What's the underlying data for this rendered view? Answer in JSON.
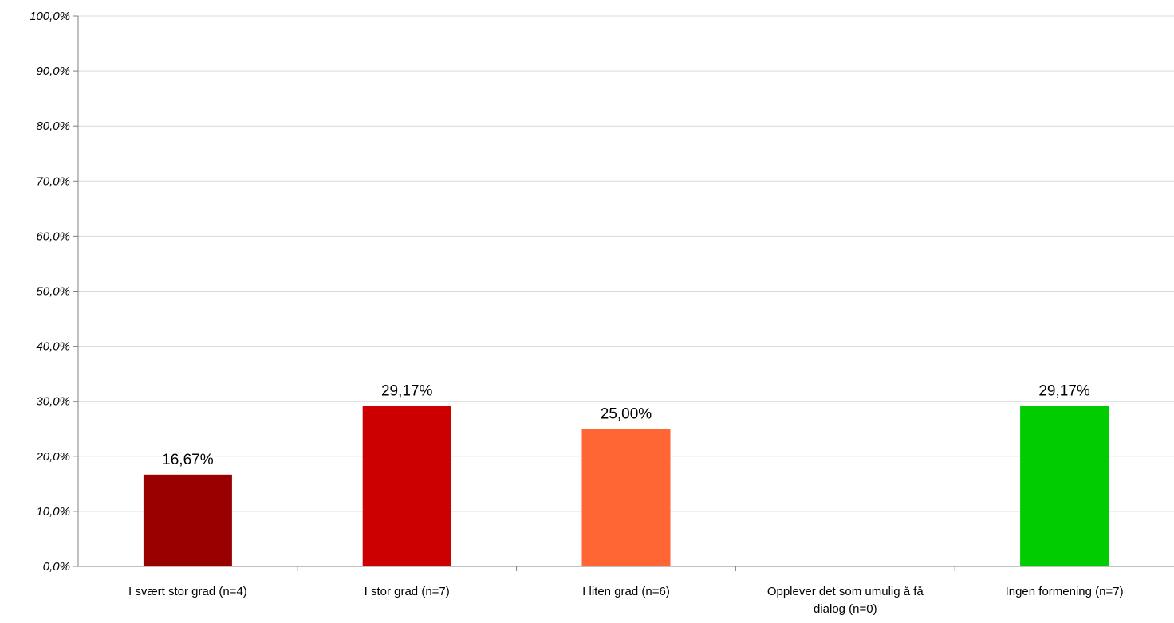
{
  "chart_data": {
    "type": "bar",
    "title": "",
    "xlabel": "",
    "ylabel": "",
    "categories": [
      [
        "I svært stor grad (n=4)"
      ],
      [
        "I stor grad (n=7)"
      ],
      [
        "I liten grad (n=6)"
      ],
      [
        "Opplever det som umulig å få",
        "dialog (n=0)"
      ],
      [
        "Ingen formening (n=7)"
      ]
    ],
    "values": [
      16.67,
      29.17,
      25.0,
      0,
      29.17
    ],
    "data_labels": [
      "16,67%",
      "29,17%",
      "25,00%",
      "",
      "29,17%"
    ],
    "colors": [
      "#990000",
      "#cc0000",
      "#ff6633",
      "#ffffff",
      "#00cc00"
    ],
    "ylim": [
      0,
      100
    ],
    "yticks": [
      0,
      10,
      20,
      30,
      40,
      50,
      60,
      70,
      80,
      90,
      100
    ],
    "ytick_labels": [
      "0,0%",
      "10,0%",
      "20,0%",
      "30,0%",
      "40,0%",
      "50,0%",
      "60,0%",
      "70,0%",
      "80,0%",
      "90,0%",
      "100,0%"
    ],
    "grid": true,
    "legend": "none"
  }
}
